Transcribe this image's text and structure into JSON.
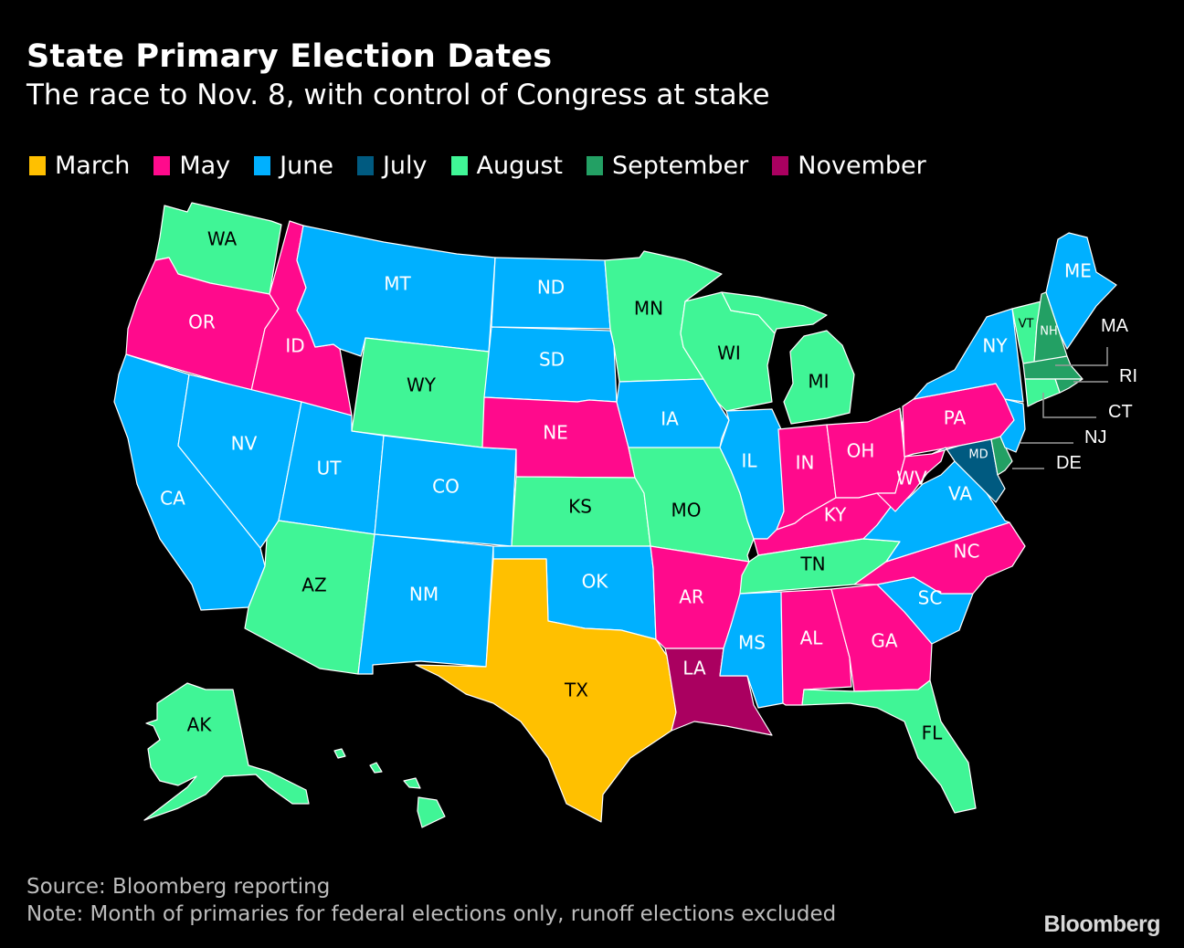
{
  "header": {
    "title": "State Primary Election Dates",
    "subtitle": "The race to Nov. 8, with control of Congress at stake"
  },
  "legend": [
    {
      "label": "March",
      "color": "#ffc000"
    },
    {
      "label": "May",
      "color": "#ff0a8c"
    },
    {
      "label": "June",
      "color": "#00b0ff"
    },
    {
      "label": "July",
      "color": "#005a80"
    },
    {
      "label": "August",
      "color": "#40f596"
    },
    {
      "label": "September",
      "color": "#23a064"
    },
    {
      "label": "November",
      "color": "#aa0060"
    }
  ],
  "chart_data": {
    "type": "choropleth",
    "title": "State Primary Election Dates",
    "subtitle": "The race to Nov. 8, with control of Congress at stake",
    "legend_position": "top",
    "categories": [
      "March",
      "May",
      "June",
      "July",
      "August",
      "September",
      "November"
    ],
    "states": {
      "TX": "March",
      "OR": "May",
      "ID": "May",
      "NE": "May",
      "IN": "May",
      "OH": "May",
      "KY": "May",
      "WV": "May",
      "PA": "May",
      "NC": "May",
      "AR": "May",
      "AL": "May",
      "GA": "May",
      "CA": "June",
      "NV": "June",
      "UT": "June",
      "CO": "June",
      "NM": "June",
      "MT": "June",
      "ND": "June",
      "SD": "June",
      "IA": "June",
      "IL": "June",
      "OK": "June",
      "MS": "June",
      "SC": "June",
      "VA": "June",
      "NY": "June",
      "NJ": "June",
      "ME": "June",
      "MD": "July",
      "WA": "August",
      "WY": "August",
      "AZ": "August",
      "KS": "August",
      "MO": "August",
      "MN": "August",
      "WI": "August",
      "MI": "August",
      "TN": "August",
      "FL": "August",
      "VT": "August",
      "CT": "August",
      "AK": "August",
      "HI": "August",
      "NH": "September",
      "MA": "September",
      "RI": "September",
      "DE": "September",
      "LA": "November"
    }
  },
  "labels": {
    "WA": "WA",
    "OR": "OR",
    "CA": "CA",
    "ID": "ID",
    "NV": "NV",
    "MT": "MT",
    "WY": "WY",
    "UT": "UT",
    "AZ": "AZ",
    "CO": "CO",
    "NM": "NM",
    "ND": "ND",
    "SD": "SD",
    "NE": "NE",
    "KS": "KS",
    "OK": "OK",
    "TX": "TX",
    "MN": "MN",
    "IA": "IA",
    "MO": "MO",
    "AR": "AR",
    "LA": "LA",
    "WI": "WI",
    "IL": "IL",
    "MI": "MI",
    "IN": "IN",
    "OH": "OH",
    "KY": "KY",
    "TN": "TN",
    "MS": "MS",
    "AL": "AL",
    "GA": "GA",
    "FL": "FL",
    "SC": "SC",
    "NC": "NC",
    "VA": "VA",
    "WV": "WV",
    "PA": "PA",
    "NY": "NY",
    "VT": "VT",
    "NH": "NH",
    "ME": "ME",
    "MD": "MD",
    "AK": "AK",
    "MA": "MA",
    "RI": "RI",
    "CT": "CT",
    "NJ": "NJ",
    "DE": "DE"
  },
  "footer": {
    "source": "Source: Bloomberg reporting",
    "note": "Note: Month of primaries for federal elections only, runoff elections excluded",
    "logo": "Bloomberg"
  }
}
